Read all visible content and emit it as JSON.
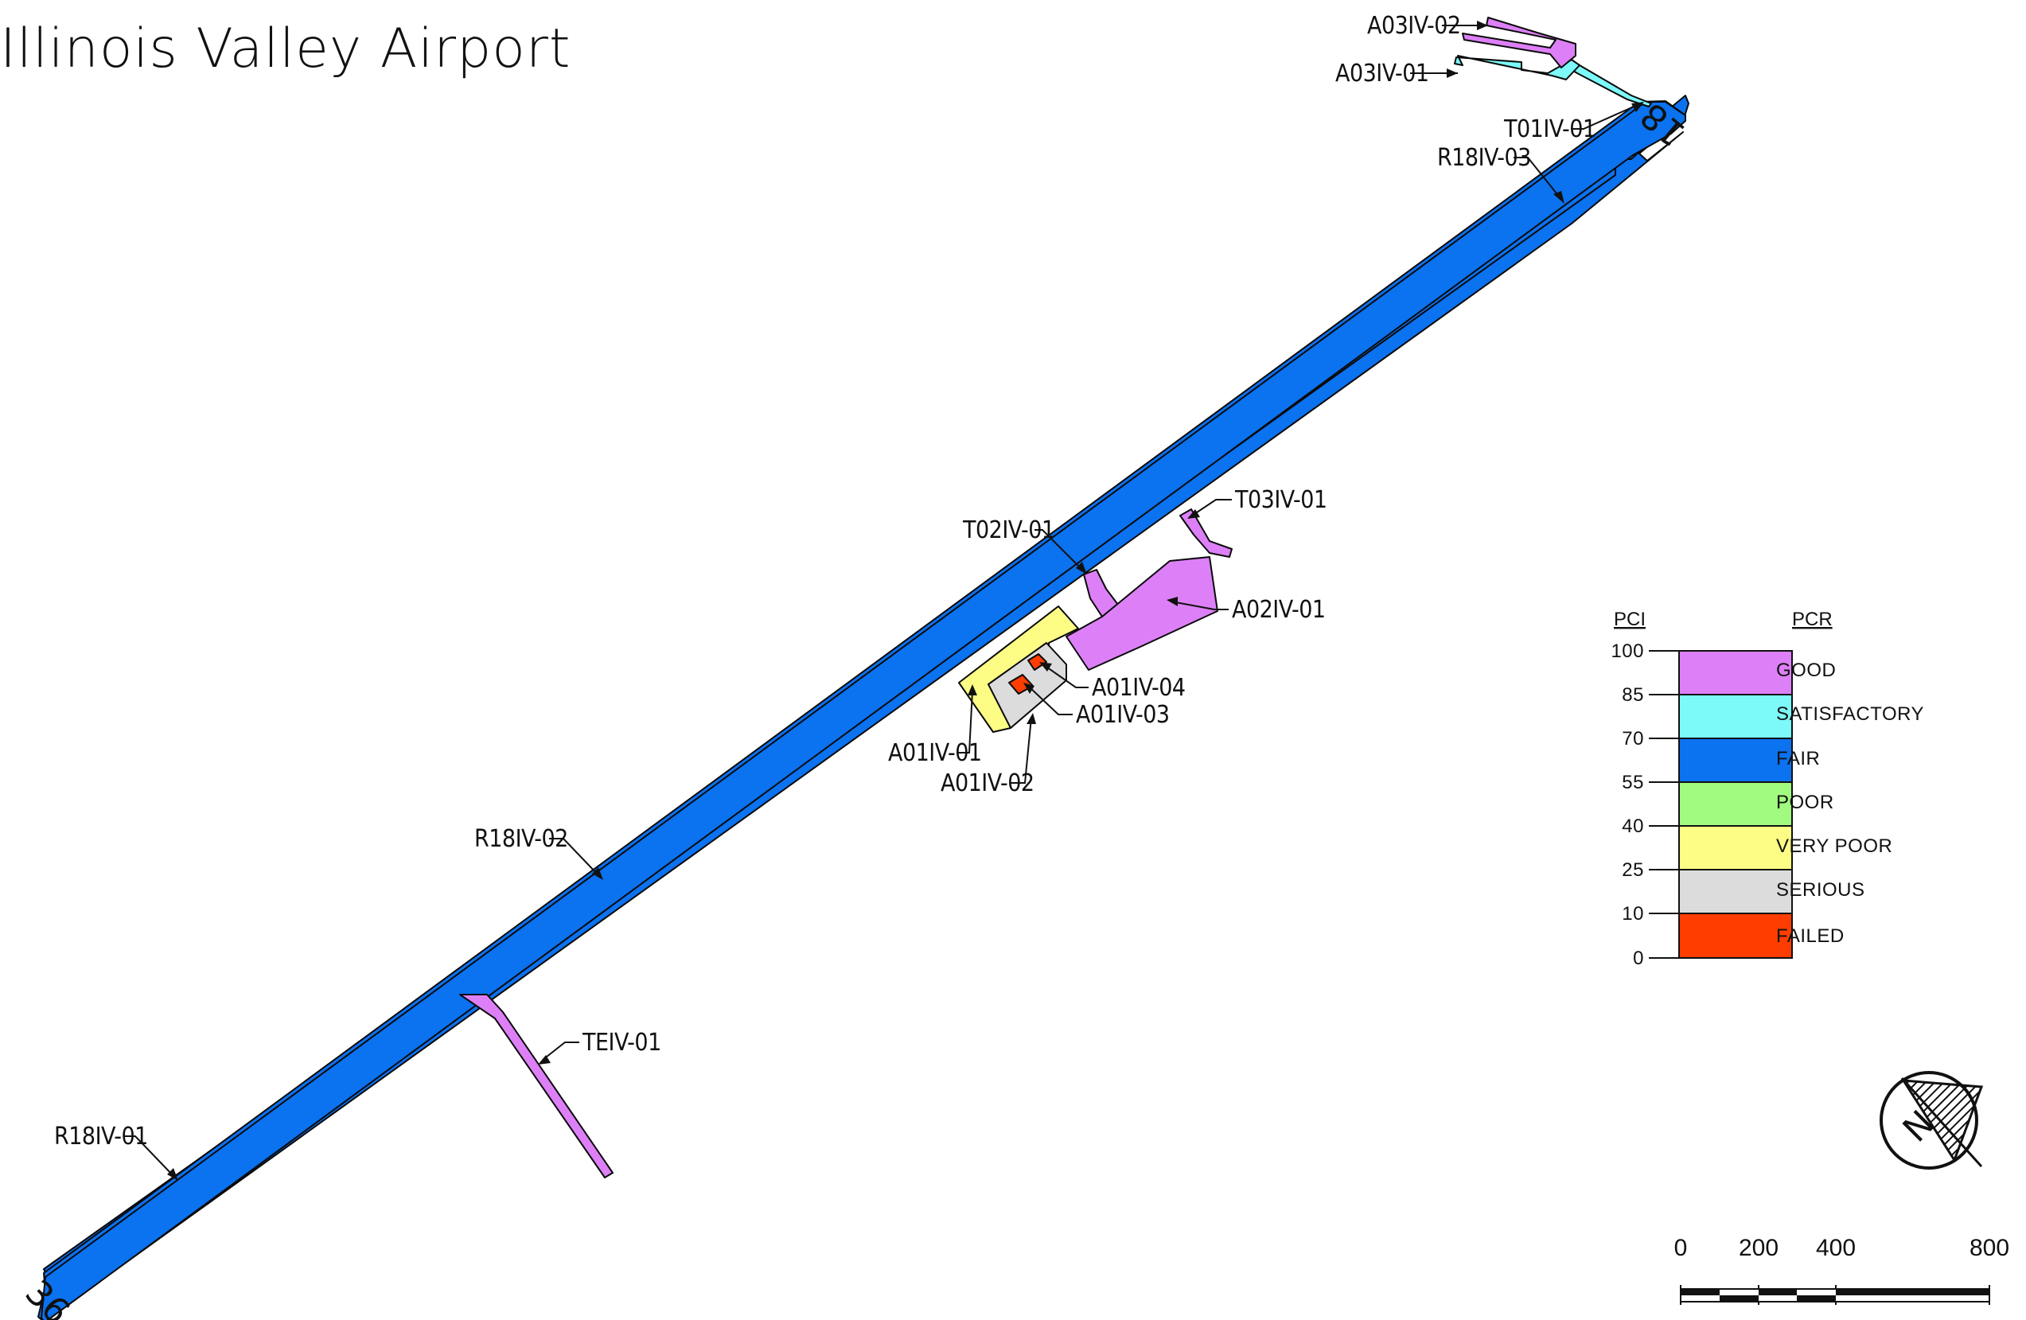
{
  "title": "Illinois Valley Airport",
  "colors": {
    "good": "#DD80F7",
    "satisfactory": "#7CF9F9",
    "fair": "#0B72F0",
    "poor": "#A1FB80",
    "very_poor": "#FDFD85",
    "serious": "#DCDCDC",
    "failed": "#FF3D00"
  },
  "runway_ends": {
    "north": "18",
    "south": "36"
  },
  "sections": [
    {
      "id": "A03IV-02",
      "condition": "GOOD"
    },
    {
      "id": "A03IV-01",
      "condition": "SATISFACTORY"
    },
    {
      "id": "T01IV-01",
      "condition": "SATISFACTORY"
    },
    {
      "id": "R18IV-03",
      "condition": "FAIR"
    },
    {
      "id": "T03IV-01",
      "condition": "GOOD"
    },
    {
      "id": "T02IV-01",
      "condition": "GOOD"
    },
    {
      "id": "A02IV-01",
      "condition": "GOOD"
    },
    {
      "id": "A01IV-04",
      "condition": "FAILED"
    },
    {
      "id": "A01IV-03",
      "condition": "FAILED"
    },
    {
      "id": "A01IV-01",
      "condition": "VERY POOR"
    },
    {
      "id": "A01IV-02",
      "condition": "SERIOUS"
    },
    {
      "id": "R18IV-02",
      "condition": "FAIR"
    },
    {
      "id": "TEIV-01",
      "condition": "GOOD"
    },
    {
      "id": "R18IV-01",
      "condition": "FAIR"
    }
  ],
  "legend": {
    "pci_header": "PCI",
    "pcr_header": "PCR",
    "ticks": [
      "100",
      "85",
      "70",
      "55",
      "40",
      "25",
      "10",
      "0"
    ],
    "categories": [
      {
        "label": "GOOD",
        "color": "#DD80F7"
      },
      {
        "label": "SATISFACTORY",
        "color": "#7CF9F9"
      },
      {
        "label": "FAIR",
        "color": "#0B72F0"
      },
      {
        "label": "POOR",
        "color": "#A1FB80"
      },
      {
        "label": "VERY  POOR",
        "color": "#FDFD85"
      },
      {
        "label": "SERIOUS",
        "color": "#DCDCDC"
      },
      {
        "label": "FAILED",
        "color": "#FF3D00"
      }
    ]
  },
  "scale_bar": {
    "labels": [
      "0",
      "200",
      "400",
      "800"
    ]
  },
  "north_arrow": {
    "letter": "N"
  }
}
